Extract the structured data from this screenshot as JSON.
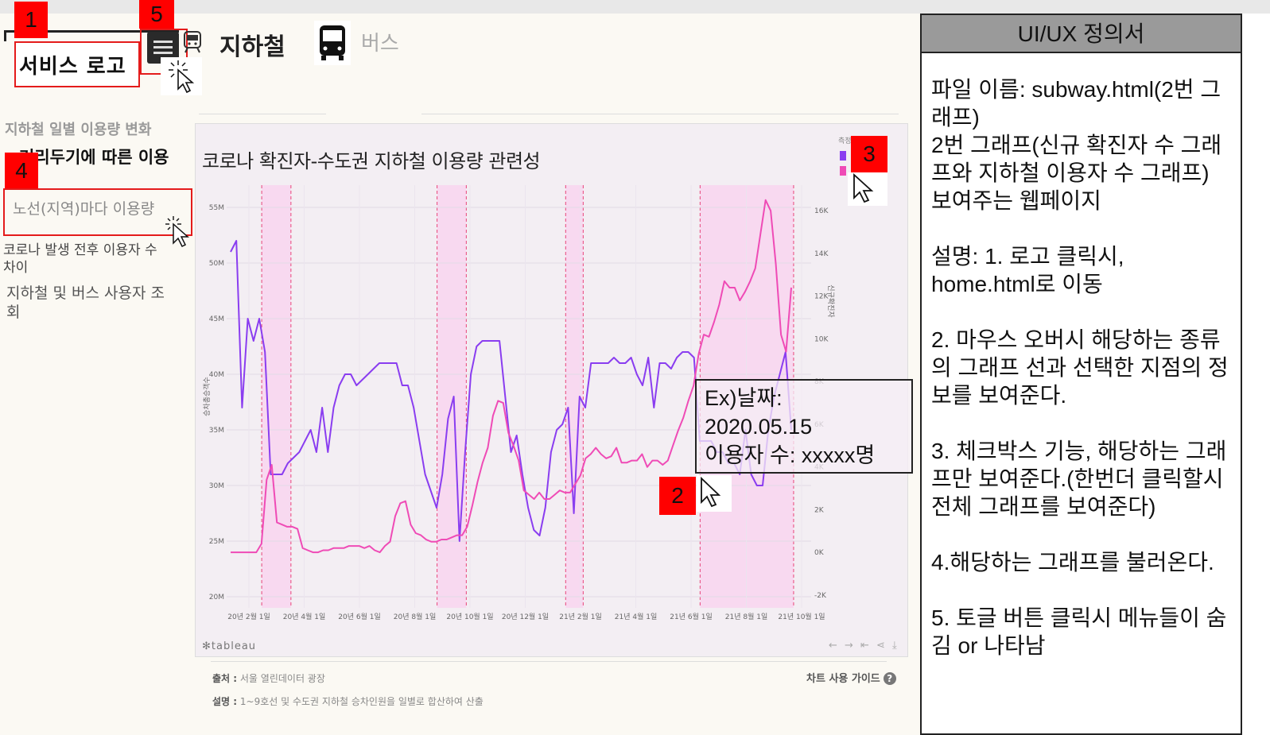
{
  "header": {
    "logo": "서비스 로고",
    "tab_subway": "지하철",
    "tab_bus": "버스"
  },
  "markers": [
    "1",
    "2",
    "3",
    "4",
    "5"
  ],
  "sidebar": {
    "items": [
      {
        "label": "지하철 일별 이용량 변화"
      },
      {
        "label": "거리두기에 따른 이용량"
      },
      {
        "label": "노선(지역)마다 이용량"
      },
      {
        "label": "코로나 발생 전후 이용자 수 차이"
      },
      {
        "label": "지하철 및 버스 사용자 조회"
      }
    ]
  },
  "chart": {
    "title": "코로나 확진자-수도권 지하철 이용량 관련성",
    "legend_title": "측정",
    "left_axis_label": "승차총승객수",
    "right_axis_label": "신규확진자",
    "brand": "tableau",
    "source_label": "출처 :",
    "source_value": "서울 열린데이터 광장",
    "desc_label": "설명 :",
    "desc_value": "1~9호선 및 수도권 지하철 승차인원을 일별로 합산하여 산출",
    "guide": "차트 사용 가이드",
    "tooltip_line1": "Ex)날짜:",
    "tooltip_line2": "2020.05.15",
    "tooltip_line3": "이용자 수: xxxxx명"
  },
  "chart_data": {
    "type": "line",
    "title": "코로나 확진자-수도권 지하철 이용량 관련성",
    "xlabel": "",
    "ylabel": "승차총승객수",
    "y2label": "신규확진자",
    "x_ticks": [
      "20년 2월 1일",
      "20년 4월 1일",
      "20년 6월 1일",
      "20년 8월 1일",
      "20년 10월 1일",
      "20년 12월 1일",
      "21년 2월 1일",
      "21년 4월 1일",
      "21년 6월 1일",
      "21년 8월 1일",
      "21년 10월 1일"
    ],
    "y_ticks": [
      "20M",
      "25M",
      "30M",
      "35M",
      "40M",
      "45M",
      "50M",
      "55M"
    ],
    "y2_ticks": [
      "-2K",
      "0K",
      "2K",
      "4K",
      "6K",
      "8K",
      "10K",
      "12K",
      "14K",
      "16K"
    ],
    "ylim": [
      19000000,
      57000000
    ],
    "y2lim": [
      -2600,
      17200
    ],
    "series": [
      {
        "axis": "left",
        "color": "#8a3df0",
        "values": [
          51,
          52,
          37,
          45,
          43,
          45,
          42,
          31,
          31,
          31,
          32,
          32.5,
          33,
          34,
          35,
          33,
          37,
          33,
          37,
          39,
          40,
          40,
          39,
          39.5,
          40,
          40.5,
          41,
          41,
          41,
          41,
          39,
          39,
          37,
          34,
          31,
          29.5,
          28,
          31,
          36,
          38,
          25,
          33,
          40,
          42.5,
          43,
          43,
          43,
          43,
          38,
          33,
          34.5,
          31,
          28,
          26,
          25.5,
          28,
          33,
          35,
          35.5,
          37,
          27.5,
          38,
          37,
          41,
          41,
          41,
          41,
          41.5,
          41,
          41,
          41.5,
          40,
          39,
          41.5,
          37,
          41,
          41,
          40.5,
          41.5,
          42,
          42,
          41.5,
          34,
          34,
          34,
          33,
          33,
          32,
          32,
          31,
          35,
          31,
          30,
          30,
          35,
          38,
          40,
          42,
          35
        ]
      },
      {
        "axis": "right",
        "color": "#ef4bb6",
        "values": [
          0,
          0,
          0,
          0,
          0,
          0,
          0.4,
          3.4,
          4.1,
          1.4,
          1.3,
          1.2,
          1.2,
          1.1,
          0.2,
          0.1,
          0,
          0,
          0.1,
          0.1,
          0.2,
          0.2,
          0.2,
          0.3,
          0.3,
          0.3,
          0.2,
          0.3,
          0.1,
          0,
          0.3,
          0.5,
          1.7,
          2.3,
          2.4,
          1.3,
          0.9,
          0.8,
          0.6,
          0.5,
          0.5,
          0.6,
          0.6,
          0.7,
          0.8,
          0.8,
          1.2,
          2.2,
          3.3,
          4.2,
          4.9,
          6.4,
          7.1,
          7.0,
          5.6,
          5.0,
          4.3,
          2.9,
          2.7,
          2.5,
          2.8,
          2.5,
          2.5,
          2.7,
          2.9,
          2.8,
          2.8,
          3.2,
          3.6,
          4.4,
          4.6,
          4.9,
          4.6,
          4.4,
          4.5,
          4.9,
          4.2,
          4.2,
          4.3,
          4.3,
          4.6,
          4.0,
          4.3,
          4.3,
          4.1,
          4.3,
          5.0,
          5.7,
          6.3,
          7.1,
          7.8,
          9.3,
          10.2,
          10.1,
          10.8,
          11.6,
          12.7,
          12.4,
          12.4,
          11.8,
          12.2,
          12.7,
          13.3,
          14.9,
          16.5,
          16.0,
          13.5,
          10.2,
          9.4,
          12.4
        ]
      }
    ],
    "highlight_bands": [
      [
        0.06,
        0.11
      ],
      [
        0.36,
        0.41
      ],
      [
        0.58,
        0.61
      ],
      [
        0.81,
        0.97
      ]
    ],
    "legend_position": "top-right",
    "grid": true
  },
  "spec": {
    "title": "UI/UX 정의서",
    "file_lines": [
      "파일 이름: subway.html(2번 그래프)",
      "2번 그래프(신규 확진자 수 그래프와 지하철 이용자 수 그래프) 보여주는 웹페이지"
    ],
    "desc1": "설명: 1. 로고 클릭시, home.html로 이동",
    "desc2": "2. 마우스 오버시 해당하는 종류의 그래프 선과 선택한 지점의 정보를 보여준다.",
    "desc3": "3. 체크박스 기능, 해당하는 그래프만 보여준다.(한번더 클릭할시 전체 그래프를 보여준다)",
    "desc4": "4.해당하는 그래프를 불러온다.",
    "desc5": "5. 토글 버튼 클릭시 메뉴들이 숨김 or 나타남"
  },
  "colors": {
    "accent_red": "#ff0000",
    "purple_series": "#8a3df0",
    "pink_series": "#ef4bb6",
    "band": "#f9d2ef"
  }
}
